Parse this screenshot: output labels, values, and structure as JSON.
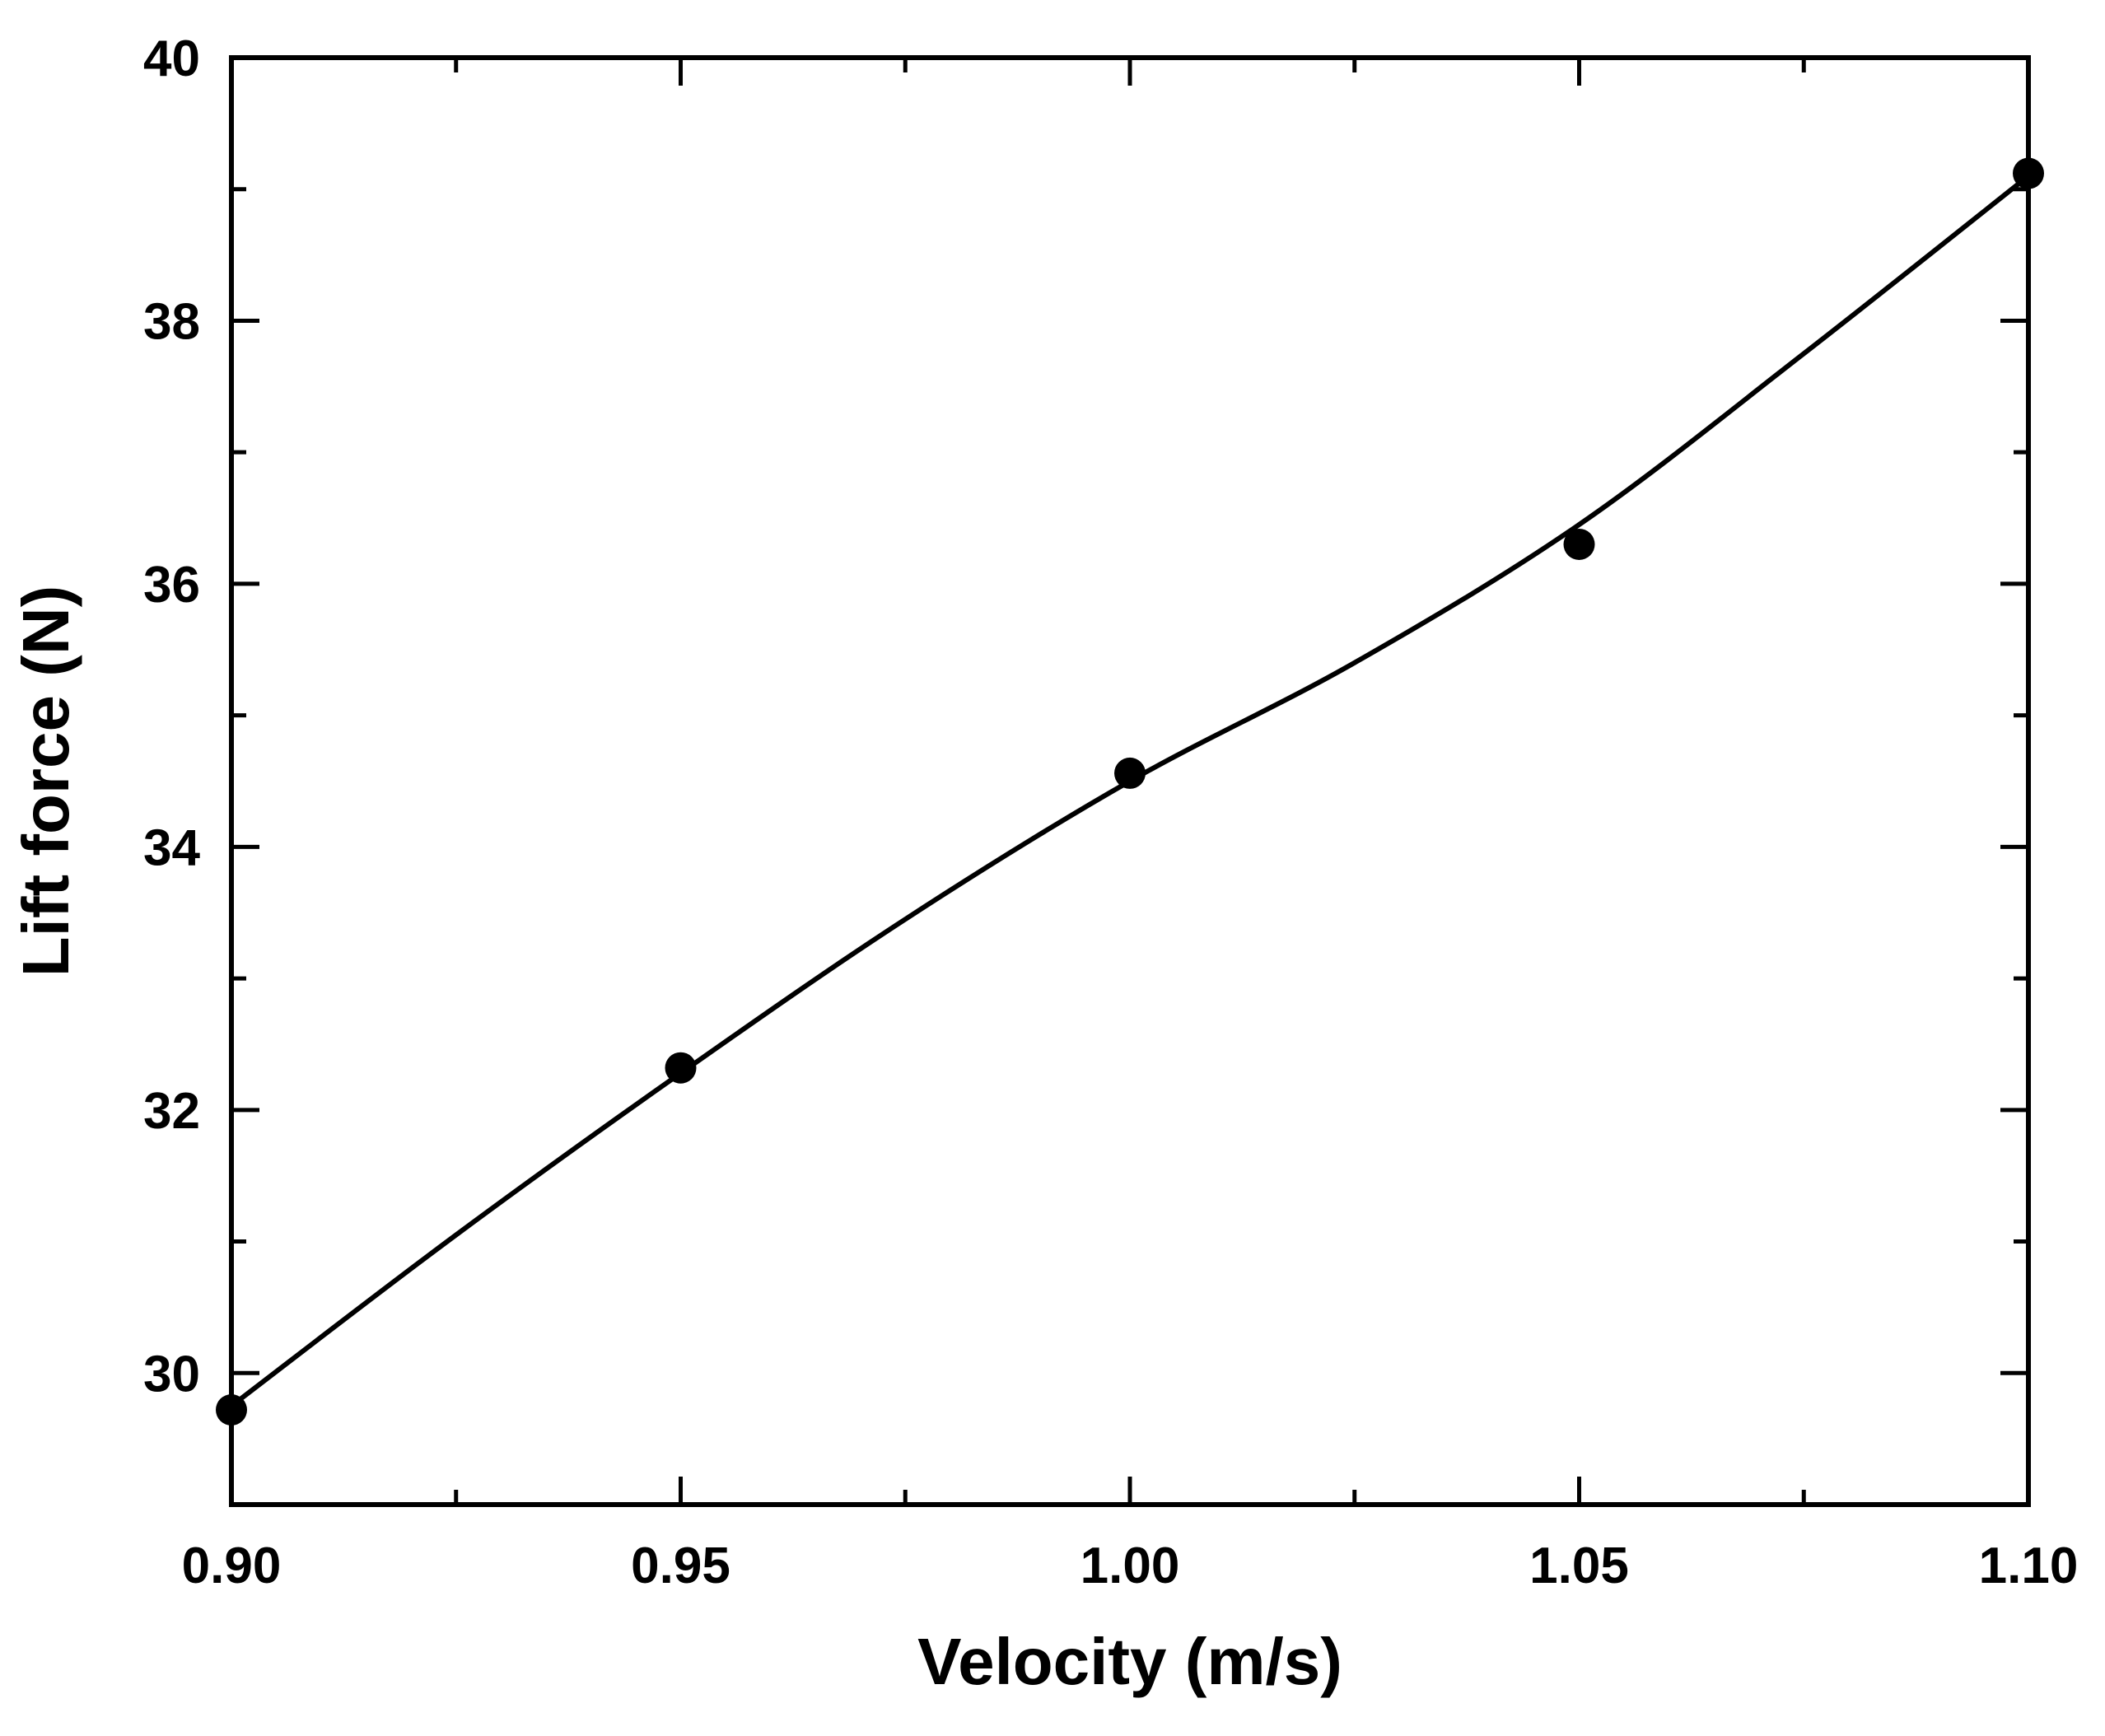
{
  "chart_data": {
    "type": "scatter",
    "title": "",
    "xlabel": "Velocity (m/s)",
    "ylabel": "Lift force (N)",
    "xlim": [
      0.9,
      1.1
    ],
    "ylim": [
      29,
      40
    ],
    "x_ticks": [
      "0.90",
      "0.95",
      "1.00",
      "1.05",
      "1.10"
    ],
    "y_ticks": [
      "30",
      "32",
      "34",
      "36",
      "38",
      "40"
    ],
    "grid": false,
    "legend": "none",
    "series": [
      {
        "marker": "filled-circle",
        "x": [
          0.9,
          0.95,
          1.0,
          1.05,
          1.1
        ],
        "y": [
          29.72,
          32.32,
          34.56,
          36.3,
          39.12
        ]
      }
    ],
    "fit_curve": {
      "style": "solid-smooth-line",
      "x": [
        0.9,
        0.925,
        0.95,
        0.975,
        1.0,
        1.025,
        1.05,
        1.075,
        1.1
      ],
      "y": [
        29.75,
        31.05,
        32.28,
        33.45,
        34.5,
        35.4,
        36.45,
        37.75,
        39.1
      ]
    },
    "colors": {
      "axis": "#000000",
      "marker": "#000000",
      "line": "#000000",
      "background": "#ffffff"
    }
  }
}
